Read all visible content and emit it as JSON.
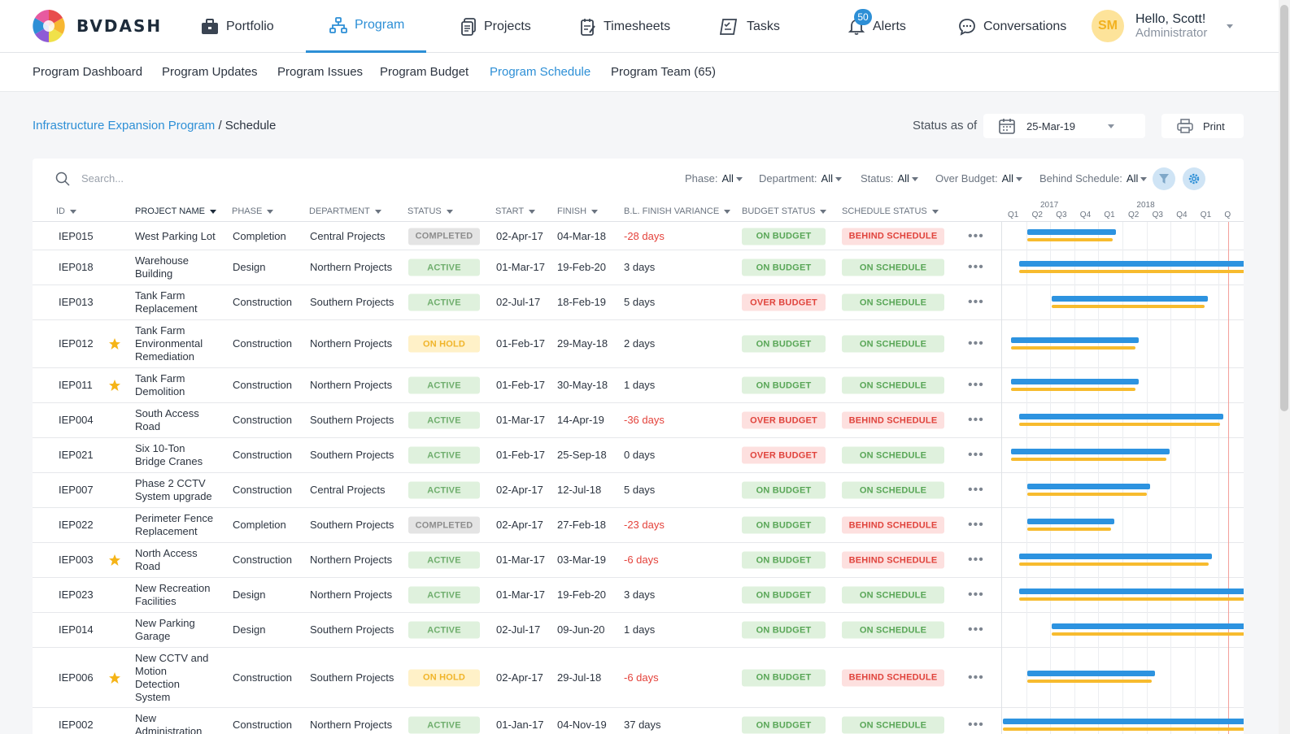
{
  "app": {
    "name": "BVDASH"
  },
  "nav": {
    "portfolio": "Portfolio",
    "program": "Program",
    "projects": "Projects",
    "timesheets": "Timesheets",
    "tasks": "Tasks",
    "alerts": "Alerts",
    "alerts_count": "50",
    "conversations": "Conversations"
  },
  "user": {
    "initials": "SM",
    "greeting": "Hello, Scott!",
    "role": "Administrator"
  },
  "subnav": {
    "dashboard": "Program Dashboard",
    "updates": "Program Updates",
    "issues": "Program Issues",
    "budget": "Program Budget",
    "schedule": "Program Schedule",
    "team": "Program Team (65)"
  },
  "breadcrumb": {
    "program": "Infrastructure Expansion Program",
    "separator": " / ",
    "page": "Schedule"
  },
  "status_as_of": {
    "label": "Status as of",
    "date": "25-Mar-19"
  },
  "print_label": "Print",
  "search": {
    "placeholder": "Search..."
  },
  "filters": {
    "phase": {
      "label": "Phase:",
      "value": "All"
    },
    "department": {
      "label": "Department:",
      "value": "All"
    },
    "status": {
      "label": "Status:",
      "value": "All"
    },
    "over_budget": {
      "label": "Over Budget:",
      "value": "All"
    },
    "behind_schedule": {
      "label": "Behind Schedule:",
      "value": "All"
    }
  },
  "columns": {
    "id": "ID",
    "name": "PROJECT NAME",
    "phase": "PHASE",
    "department": "DEPARTMENT",
    "status": "STATUS",
    "start": "START",
    "finish": "FINISH",
    "variance": "B.L. FINISH VARIANCE",
    "budget_status": "BUDGET STATUS",
    "schedule_status": "SCHEDULE STATUS"
  },
  "gantt": {
    "years": [
      "2017",
      "2018"
    ],
    "quarters": [
      "Q1",
      "Q2",
      "Q3",
      "Q4",
      "Q1",
      "Q2",
      "Q3",
      "Q4",
      "Q1",
      "Q"
    ]
  },
  "colors": {
    "accent": "#2d8fd6",
    "bar_actual": "#2d93e0",
    "bar_baseline": "#f7bb2e"
  },
  "rows": [
    {
      "id": "IEP015",
      "name": "West Parking Lot",
      "phase": "Completion",
      "department": "Central Projects",
      "status": "COMPLETED",
      "start": "02-Apr-17",
      "finish": "04-Mar-18",
      "variance": "-28 days",
      "budget": "ON BUDGET",
      "schedule": "BEHIND SCHEDULE",
      "starred": false
    },
    {
      "id": "IEP018",
      "name": "Warehouse Building",
      "phase": "Design",
      "department": "Northern Projects",
      "status": "ACTIVE",
      "start": "01-Mar-17",
      "finish": "19-Feb-20",
      "variance": "3 days",
      "budget": "ON BUDGET",
      "schedule": "ON SCHEDULE",
      "starred": false
    },
    {
      "id": "IEP013",
      "name": "Tank Farm Replacement",
      "phase": "Construction",
      "department": "Southern Projects",
      "status": "ACTIVE",
      "start": "02-Jul-17",
      "finish": "18-Feb-19",
      "variance": "5 days",
      "budget": "OVER BUDGET",
      "schedule": "ON SCHEDULE",
      "starred": false
    },
    {
      "id": "IEP012",
      "name": "Tank Farm Environmental Remediation",
      "phase": "Construction",
      "department": "Northern Projects",
      "status": "ON HOLD",
      "start": "01-Feb-17",
      "finish": "29-May-18",
      "variance": "2 days",
      "budget": "ON BUDGET",
      "schedule": "ON SCHEDULE",
      "starred": true
    },
    {
      "id": "IEP011",
      "name": "Tank Farm Demolition",
      "phase": "Construction",
      "department": "Northern Projects",
      "status": "ACTIVE",
      "start": "01-Feb-17",
      "finish": "30-May-18",
      "variance": "1 days",
      "budget": "ON BUDGET",
      "schedule": "ON SCHEDULE",
      "starred": true
    },
    {
      "id": "IEP004",
      "name": "South Access Road",
      "phase": "Construction",
      "department": "Southern Projects",
      "status": "ACTIVE",
      "start": "01-Mar-17",
      "finish": "14-Apr-19",
      "variance": "-36 days",
      "budget": "OVER BUDGET",
      "schedule": "BEHIND SCHEDULE",
      "starred": false
    },
    {
      "id": "IEP021",
      "name": "Six 10-Ton Bridge Cranes",
      "phase": "Construction",
      "department": "Southern Projects",
      "status": "ACTIVE",
      "start": "01-Feb-17",
      "finish": "25-Sep-18",
      "variance": "0 days",
      "budget": "OVER BUDGET",
      "schedule": "ON SCHEDULE",
      "starred": false
    },
    {
      "id": "IEP007",
      "name": "Phase 2 CCTV System upgrade",
      "phase": "Construction",
      "department": "Central Projects",
      "status": "ACTIVE",
      "start": "02-Apr-17",
      "finish": "12-Jul-18",
      "variance": "5 days",
      "budget": "ON BUDGET",
      "schedule": "ON SCHEDULE",
      "starred": false
    },
    {
      "id": "IEP022",
      "name": "Perimeter Fence Replacement",
      "phase": "Completion",
      "department": "Southern Projects",
      "status": "COMPLETED",
      "start": "02-Apr-17",
      "finish": "27-Feb-18",
      "variance": "-23 days",
      "budget": "ON BUDGET",
      "schedule": "BEHIND SCHEDULE",
      "starred": false
    },
    {
      "id": "IEP003",
      "name": "North Access Road",
      "phase": "Construction",
      "department": "Northern Projects",
      "status": "ACTIVE",
      "start": "01-Mar-17",
      "finish": "03-Mar-19",
      "variance": "-6 days",
      "budget": "ON BUDGET",
      "schedule": "BEHIND SCHEDULE",
      "starred": true
    },
    {
      "id": "IEP023",
      "name": "New Recreation Facilities",
      "phase": "Design",
      "department": "Northern Projects",
      "status": "ACTIVE",
      "start": "01-Mar-17",
      "finish": "19-Feb-20",
      "variance": "3 days",
      "budget": "ON BUDGET",
      "schedule": "ON SCHEDULE",
      "starred": false
    },
    {
      "id": "IEP014",
      "name": "New Parking Garage",
      "phase": "Design",
      "department": "Southern Projects",
      "status": "ACTIVE",
      "start": "02-Jul-17",
      "finish": "09-Jun-20",
      "variance": "1 days",
      "budget": "ON BUDGET",
      "schedule": "ON SCHEDULE",
      "starred": false
    },
    {
      "id": "IEP006",
      "name": "New CCTV and Motion Detection System",
      "phase": "Construction",
      "department": "Southern Projects",
      "status": "ON HOLD",
      "start": "02-Apr-17",
      "finish": "29-Jul-18",
      "variance": "-6 days",
      "budget": "ON BUDGET",
      "schedule": "BEHIND SCHEDULE",
      "starred": true
    },
    {
      "id": "IEP002",
      "name": "New Administration",
      "phase": "Construction",
      "department": "Northern Projects",
      "status": "ACTIVE",
      "start": "01-Jan-17",
      "finish": "04-Nov-19",
      "variance": "37 days",
      "budget": "ON BUDGET",
      "schedule": "ON SCHEDULE",
      "starred": false
    }
  ]
}
